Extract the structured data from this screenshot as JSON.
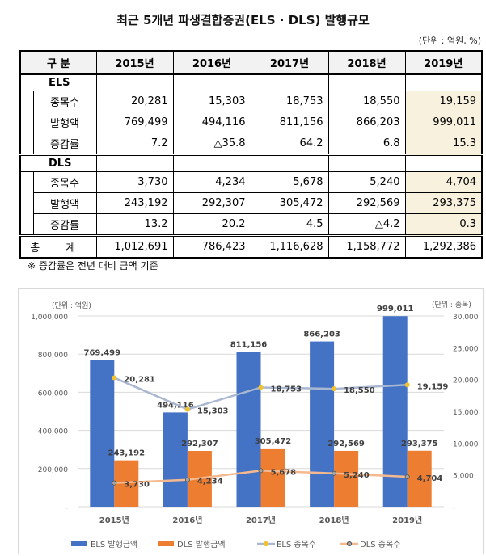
{
  "title": "최근 5개년 파생결합증권(ELS · DLS) 발행규모",
  "unit": "(단위 : 억원, %)",
  "table": {
    "headers": [
      "구 분",
      "2015년",
      "2016년",
      "2017년",
      "2018년",
      "2019년"
    ],
    "els": {
      "label": "ELS",
      "rows": [
        {
          "label": "종목수",
          "values": [
            "20,281",
            "15,303",
            "18,753",
            "18,550",
            "19,159"
          ]
        },
        {
          "label": "발행액",
          "values": [
            "769,499",
            "494,116",
            "811,156",
            "866,203",
            "999,011"
          ]
        },
        {
          "label": "증감률",
          "values": [
            "7.2",
            "△35.8",
            "64.2",
            "6.8",
            "15.3"
          ]
        }
      ]
    },
    "dls": {
      "label": "DLS",
      "rows": [
        {
          "label": "종목수",
          "values": [
            "3,730",
            "4,234",
            "5,678",
            "5,240",
            "4,704"
          ]
        },
        {
          "label": "발행액",
          "values": [
            "243,192",
            "292,307",
            "305,472",
            "292,569",
            "293,375"
          ]
        },
        {
          "label": "증감률",
          "values": [
            "13.2",
            "20.2",
            "4.5",
            "△4.2",
            "0.3"
          ]
        }
      ]
    },
    "total": {
      "label": "총 계",
      "values": [
        "1,012,691",
        "786,423",
        "1,116,628",
        "1,158,772",
        "1,292,386"
      ]
    }
  },
  "note": "※ 증감률은 전년 대비 금액 기준",
  "chart_data": {
    "type": "bar+line",
    "categories": [
      "2015년",
      "2016년",
      "2017년",
      "2018년",
      "2019년"
    ],
    "left_axis": {
      "label": "(단위 : 억원)",
      "ylim": [
        0,
        1000000
      ],
      "ticks": [
        "-",
        "200,000",
        "400,000",
        "600,000",
        "800,000",
        "1,000,000"
      ]
    },
    "right_axis": {
      "label": "(단위 : 종목)",
      "ylim": [
        0,
        30000
      ],
      "ticks": [
        "-",
        "5,000",
        "10,000",
        "15,000",
        "20,000",
        "25,000",
        "30,000"
      ]
    },
    "series": [
      {
        "name": "ELS 발행금액",
        "kind": "bar",
        "axis": "left",
        "color": "#4472c4",
        "values": [
          769499,
          494116,
          811156,
          866203,
          999011
        ],
        "labels": [
          "769,499",
          "494,116",
          "811,156",
          "866,203",
          "999,011"
        ]
      },
      {
        "name": "DLS 발행금액",
        "kind": "bar",
        "axis": "left",
        "color": "#ed7d31",
        "values": [
          243192,
          292307,
          305472,
          292569,
          293375
        ],
        "labels": [
          "243,192",
          "292,307",
          "305,472",
          "292,569",
          "293,375"
        ]
      },
      {
        "name": "ELS 종목수",
        "kind": "line",
        "axis": "right",
        "color": "#a9b8d0",
        "marker": "#f2c12e",
        "values": [
          20281,
          15303,
          18753,
          18550,
          19159
        ],
        "labels": [
          "20,281",
          "15,303",
          "18,753",
          "18,550",
          "19,159"
        ]
      },
      {
        "name": "DLS 종목수",
        "kind": "line",
        "axis": "right",
        "color": "#f4b98f",
        "marker": "#a5a5a5",
        "values": [
          3730,
          4234,
          5678,
          5240,
          4704
        ],
        "labels": [
          "3,730",
          "4,234",
          "5,678",
          "5,240",
          "4,704"
        ]
      }
    ],
    "grid": true,
    "legend": "bottom"
  }
}
